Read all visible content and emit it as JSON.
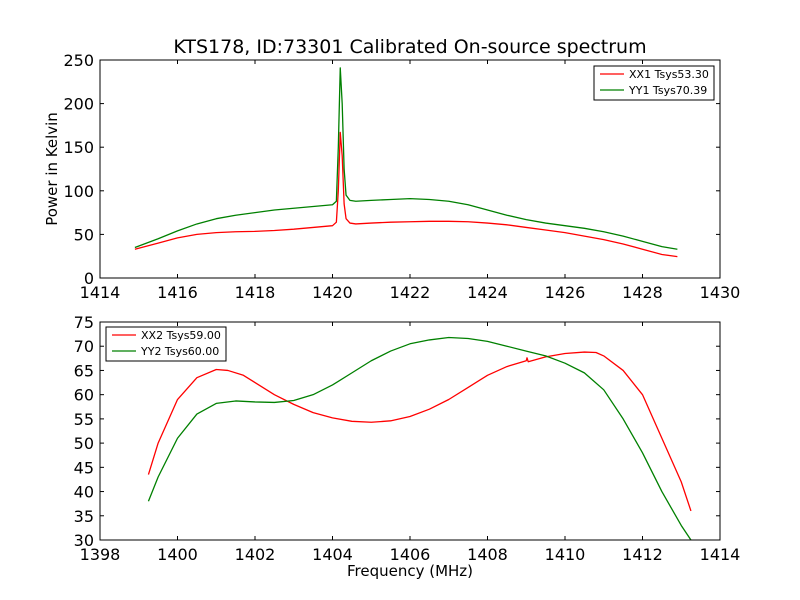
{
  "chart_data": [
    {
      "type": "line",
      "title": "KTS178, ID:73301 Calibrated On-source spectrum",
      "xlabel": "",
      "ylabel": "Power in Kelvin",
      "xlim": [
        1414,
        1430
      ],
      "ylim": [
        0,
        250
      ],
      "xticks": [
        "1414",
        "1416",
        "1418",
        "1420",
        "1422",
        "1424",
        "1426",
        "1428",
        "1430"
      ],
      "yticks": [
        "0",
        "50",
        "100",
        "150",
        "200",
        "250"
      ],
      "legend_position": "top-right",
      "grid": false,
      "series": [
        {
          "name": "XX1 Tsys53.30",
          "color": "#ff0000",
          "x": [
            1414.9,
            1415.5,
            1416.0,
            1416.5,
            1417.0,
            1417.5,
            1418.0,
            1418.5,
            1419.0,
            1419.5,
            1420.0,
            1420.1,
            1420.15,
            1420.2,
            1420.25,
            1420.3,
            1420.35,
            1420.45,
            1420.6,
            1421.0,
            1421.5,
            1422.0,
            1422.5,
            1423.0,
            1423.5,
            1424.0,
            1424.5,
            1425.0,
            1425.5,
            1426.0,
            1426.5,
            1427.0,
            1427.5,
            1428.0,
            1428.5,
            1428.9
          ],
          "y": [
            33,
            40,
            46,
            50,
            52,
            53,
            53.5,
            54.5,
            56,
            58,
            60,
            64,
            100,
            167,
            140,
            85,
            68,
            63,
            62,
            63,
            64,
            64.5,
            65,
            65,
            64.5,
            63,
            61,
            58,
            55,
            52,
            48,
            44,
            39,
            33,
            27,
            24.5
          ]
        },
        {
          "name": "YY1 Tsys70.39",
          "color": "#008000",
          "x": [
            1414.9,
            1415.5,
            1416.0,
            1416.5,
            1417.0,
            1417.5,
            1418.0,
            1418.5,
            1419.0,
            1419.5,
            1420.0,
            1420.1,
            1420.15,
            1420.2,
            1420.25,
            1420.3,
            1420.35,
            1420.45,
            1420.6,
            1421.0,
            1421.5,
            1422.0,
            1422.5,
            1423.0,
            1423.5,
            1424.0,
            1424.5,
            1425.0,
            1425.5,
            1426.0,
            1426.5,
            1427.0,
            1427.5,
            1428.0,
            1428.5,
            1428.9
          ],
          "y": [
            35,
            45,
            54,
            62,
            68,
            72,
            75,
            78,
            80,
            82,
            84,
            88,
            150,
            241,
            200,
            125,
            95,
            89,
            88,
            89,
            90,
            91,
            90,
            88,
            84,
            78,
            72,
            67,
            63,
            60,
            57,
            53,
            48,
            42,
            36,
            33
          ]
        }
      ]
    },
    {
      "type": "line",
      "title": "",
      "xlabel": "Frequency (MHz)",
      "ylabel": "",
      "xlim": [
        1398,
        1414
      ],
      "ylim": [
        30,
        75
      ],
      "xticks": [
        "1398",
        "1400",
        "1402",
        "1404",
        "1406",
        "1408",
        "1410",
        "1412",
        "1414"
      ],
      "yticks": [
        "30",
        "35",
        "40",
        "45",
        "50",
        "55",
        "60",
        "65",
        "70",
        "75"
      ],
      "legend_position": "top-left",
      "grid": false,
      "series": [
        {
          "name": "XX2 Tsys59.00",
          "color": "#ff0000",
          "x": [
            1399.25,
            1399.5,
            1400.0,
            1400.5,
            1401.0,
            1401.3,
            1401.7,
            1402.0,
            1402.5,
            1403.0,
            1403.5,
            1404.0,
            1404.5,
            1405.0,
            1405.5,
            1406.0,
            1406.5,
            1407.0,
            1407.5,
            1408.0,
            1408.5,
            1409.0,
            1409.02,
            1409.05,
            1409.5,
            1410.0,
            1410.5,
            1410.8,
            1411.0,
            1411.5,
            1412.0,
            1412.5,
            1413.0,
            1413.25
          ],
          "y": [
            43.5,
            50,
            59,
            63.5,
            65.2,
            65,
            64,
            62.5,
            60,
            58,
            56.3,
            55.2,
            54.5,
            54.3,
            54.6,
            55.5,
            57,
            59,
            61.5,
            64,
            65.8,
            67,
            67.6,
            66.8,
            67.8,
            68.5,
            68.8,
            68.7,
            68,
            65,
            60,
            51,
            42,
            36
          ]
        },
        {
          "name": "YY2 Tsys60.00",
          "color": "#008000",
          "x": [
            1399.25,
            1399.5,
            1400.0,
            1400.5,
            1401.0,
            1401.5,
            1402.0,
            1402.5,
            1403.0,
            1403.5,
            1404.0,
            1404.5,
            1405.0,
            1405.5,
            1406.0,
            1406.5,
            1407.0,
            1407.5,
            1408.0,
            1408.5,
            1409.0,
            1409.5,
            1410.0,
            1410.5,
            1411.0,
            1411.5,
            1412.0,
            1412.5,
            1413.0,
            1413.25
          ],
          "y": [
            38,
            43,
            51,
            56,
            58.2,
            58.7,
            58.5,
            58.4,
            58.8,
            60,
            62,
            64.5,
            67,
            69,
            70.5,
            71.3,
            71.8,
            71.6,
            71,
            70,
            69,
            68,
            66.5,
            64.5,
            61,
            55,
            48,
            40,
            33,
            30
          ]
        }
      ]
    }
  ]
}
